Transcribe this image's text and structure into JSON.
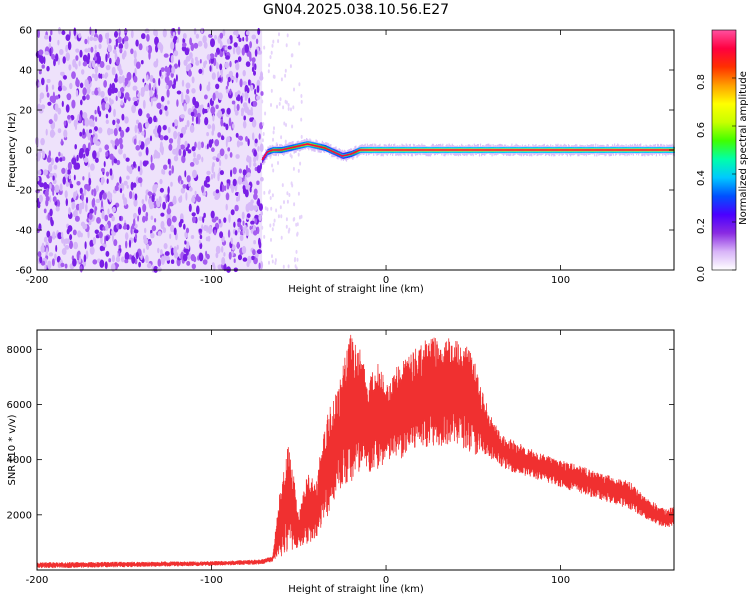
{
  "title": "GN04.2025.038.10.56.E27",
  "chart_data": [
    {
      "type": "heatmap",
      "title": "GN04.2025.038.10.56.E27",
      "xlabel": "Height of straight line (km)",
      "ylabel": "Frequency (Hz)",
      "xlim": [
        -200,
        165
      ],
      "ylim": [
        -60,
        60
      ],
      "xticks": [
        -200,
        -100,
        0,
        100
      ],
      "yticks": [
        -60,
        -40,
        -20,
        0,
        20,
        40,
        60
      ],
      "xtick_labels": [
        "-200",
        "-100",
        "0",
        "100"
      ],
      "ytick_labels": [
        "-60",
        "-40",
        "-20",
        "0",
        "20",
        "40",
        "60"
      ],
      "colorbar": {
        "label": "Normalized spectral amplitude",
        "range": [
          0,
          1
        ],
        "ticks": [
          0.0,
          0.2,
          0.4,
          0.6,
          0.8
        ],
        "tick_labels": [
          "0.0",
          "0.2",
          "0.4",
          "0.6",
          "0.8"
        ],
        "colors": [
          "#ffffff",
          "#d8b4f8",
          "#8a2be2",
          "#4b00ff",
          "#0050ff",
          "#00c8ff",
          "#00ffaa",
          "#40ff00",
          "#c8ff00",
          "#ffff00",
          "#ffa000",
          "#ff3000",
          "#ff0040",
          "#ff50a0"
        ]
      },
      "noise_region_x": [
        -200,
        -71
      ],
      "signal_track": {
        "x": [
          -71,
          -68,
          -65,
          -60,
          -55,
          -50,
          -45,
          -40,
          -35,
          -30,
          -25,
          -20,
          -15,
          -10,
          0,
          20,
          50,
          100,
          150,
          165
        ],
        "frequency": [
          -5,
          -1,
          0,
          0,
          1,
          2,
          3,
          2,
          1,
          -1,
          -3,
          -2,
          0,
          0,
          0,
          0,
          0,
          0,
          0,
          0
        ],
        "amplitude": [
          0.35,
          0.6,
          0.75,
          0.7,
          0.7,
          0.75,
          0.8,
          0.75,
          0.7,
          0.65,
          0.6,
          0.65,
          0.8,
          0.85,
          0.85,
          0.85,
          0.85,
          0.85,
          0.85,
          0.85
        ]
      },
      "grid": false
    },
    {
      "type": "line",
      "xlabel": "Height of straight line (km)",
      "ylabel": "SNR (10 * v/v)",
      "xlim": [
        -200,
        165
      ],
      "ylim": [
        0,
        8700
      ],
      "xticks": [
        -200,
        -100,
        0,
        100
      ],
      "yticks": [
        2000,
        4000,
        6000,
        8000
      ],
      "xtick_labels": [
        "-200",
        "-100",
        "0",
        "100"
      ],
      "ytick_labels": [
        "2000",
        "4000",
        "6000",
        "8000"
      ],
      "color": "#f03030",
      "envelope": {
        "x": [
          -200,
          -150,
          -100,
          -72,
          -65,
          -62,
          -58,
          -55,
          -50,
          -45,
          -40,
          -35,
          -32,
          -28,
          -25,
          -20,
          -15,
          -10,
          -5,
          0,
          5,
          10,
          15,
          20,
          25,
          30,
          35,
          40,
          45,
          50,
          55,
          60,
          65,
          70,
          80,
          90,
          100,
          110,
          120,
          130,
          140,
          150,
          160,
          165
        ],
        "low": [
          60,
          100,
          150,
          200,
          300,
          400,
          500,
          600,
          800,
          900,
          1200,
          1600,
          2200,
          2800,
          3000,
          3000,
          3200,
          3400,
          3600,
          3800,
          4000,
          4000,
          4200,
          4400,
          4500,
          4500,
          4500,
          4500,
          4400,
          4200,
          4000,
          4000,
          3800,
          3600,
          3400,
          3200,
          3000,
          2800,
          2600,
          2400,
          2200,
          1800,
          1500,
          1600
        ],
        "high": [
          280,
          300,
          320,
          380,
          500,
          2400,
          4000,
          4800,
          2000,
          3500,
          3200,
          5500,
          6200,
          6500,
          7400,
          8600,
          8000,
          7000,
          7600,
          6800,
          7300,
          7600,
          8000,
          8200,
          8500,
          8600,
          8500,
          8400,
          8200,
          7800,
          6500,
          5600,
          5000,
          4800,
          4500,
          4200,
          4000,
          3800,
          3600,
          3400,
          3200,
          2600,
          2200,
          2300
        ]
      },
      "grid": false
    }
  ]
}
